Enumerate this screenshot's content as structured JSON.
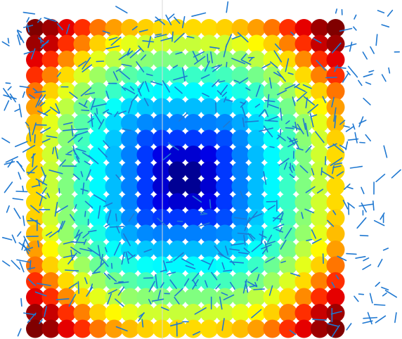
{
  "chart_data": {
    "type": "scatter",
    "title": "",
    "xlabel": "",
    "ylabel": "",
    "grid": false,
    "legend": "none",
    "colormap": "jet",
    "grid_size": 20,
    "marker": "filled-circle",
    "field_values": [
      [
        1.0,
        0.97,
        0.9,
        0.83,
        0.76,
        0.72,
        0.69,
        0.67,
        0.66,
        0.66,
        0.66,
        0.66,
        0.67,
        0.69,
        0.72,
        0.76,
        0.83,
        0.9,
        0.97,
        1.0
      ],
      [
        0.97,
        0.93,
        0.83,
        0.75,
        0.67,
        0.63,
        0.6,
        0.58,
        0.58,
        0.57,
        0.57,
        0.58,
        0.58,
        0.6,
        0.63,
        0.67,
        0.75,
        0.83,
        0.93,
        0.97
      ],
      [
        0.9,
        0.83,
        0.74,
        0.66,
        0.6,
        0.56,
        0.52,
        0.51,
        0.5,
        0.5,
        0.5,
        0.5,
        0.51,
        0.52,
        0.56,
        0.6,
        0.66,
        0.74,
        0.83,
        0.9
      ],
      [
        0.83,
        0.75,
        0.66,
        0.59,
        0.53,
        0.49,
        0.46,
        0.44,
        0.43,
        0.43,
        0.43,
        0.43,
        0.44,
        0.46,
        0.49,
        0.53,
        0.59,
        0.66,
        0.75,
        0.83
      ],
      [
        0.76,
        0.67,
        0.6,
        0.53,
        0.48,
        0.43,
        0.4,
        0.38,
        0.37,
        0.37,
        0.37,
        0.37,
        0.38,
        0.4,
        0.43,
        0.48,
        0.53,
        0.6,
        0.67,
        0.76
      ],
      [
        0.72,
        0.63,
        0.56,
        0.49,
        0.43,
        0.38,
        0.34,
        0.32,
        0.31,
        0.31,
        0.31,
        0.31,
        0.32,
        0.34,
        0.38,
        0.43,
        0.49,
        0.56,
        0.63,
        0.72
      ],
      [
        0.69,
        0.6,
        0.52,
        0.46,
        0.4,
        0.34,
        0.29,
        0.26,
        0.25,
        0.25,
        0.25,
        0.25,
        0.26,
        0.29,
        0.34,
        0.4,
        0.46,
        0.52,
        0.6,
        0.69
      ],
      [
        0.67,
        0.58,
        0.51,
        0.44,
        0.38,
        0.32,
        0.26,
        0.2,
        0.18,
        0.18,
        0.18,
        0.18,
        0.2,
        0.26,
        0.32,
        0.38,
        0.44,
        0.51,
        0.58,
        0.67
      ],
      [
        0.66,
        0.58,
        0.5,
        0.43,
        0.37,
        0.31,
        0.25,
        0.18,
        0.1,
        0.08,
        0.08,
        0.1,
        0.18,
        0.25,
        0.31,
        0.37,
        0.43,
        0.5,
        0.58,
        0.66
      ],
      [
        0.66,
        0.57,
        0.5,
        0.43,
        0.37,
        0.31,
        0.25,
        0.18,
        0.08,
        0.02,
        0.02,
        0.08,
        0.18,
        0.25,
        0.31,
        0.37,
        0.43,
        0.5,
        0.57,
        0.66
      ],
      [
        0.66,
        0.57,
        0.5,
        0.43,
        0.37,
        0.31,
        0.25,
        0.18,
        0.08,
        0.02,
        0.02,
        0.08,
        0.18,
        0.25,
        0.31,
        0.37,
        0.43,
        0.5,
        0.57,
        0.66
      ],
      [
        0.66,
        0.58,
        0.5,
        0.43,
        0.37,
        0.31,
        0.25,
        0.18,
        0.1,
        0.08,
        0.08,
        0.1,
        0.18,
        0.25,
        0.31,
        0.37,
        0.43,
        0.5,
        0.58,
        0.66
      ],
      [
        0.67,
        0.58,
        0.51,
        0.44,
        0.38,
        0.32,
        0.26,
        0.2,
        0.18,
        0.18,
        0.18,
        0.18,
        0.2,
        0.26,
        0.32,
        0.38,
        0.44,
        0.51,
        0.58,
        0.67
      ],
      [
        0.69,
        0.6,
        0.52,
        0.46,
        0.4,
        0.34,
        0.29,
        0.26,
        0.25,
        0.25,
        0.25,
        0.25,
        0.26,
        0.29,
        0.34,
        0.4,
        0.46,
        0.52,
        0.6,
        0.69
      ],
      [
        0.72,
        0.63,
        0.56,
        0.49,
        0.43,
        0.38,
        0.34,
        0.32,
        0.31,
        0.31,
        0.31,
        0.31,
        0.32,
        0.34,
        0.38,
        0.43,
        0.49,
        0.56,
        0.63,
        0.72
      ],
      [
        0.76,
        0.67,
        0.6,
        0.53,
        0.48,
        0.43,
        0.4,
        0.38,
        0.37,
        0.37,
        0.37,
        0.37,
        0.38,
        0.4,
        0.43,
        0.48,
        0.53,
        0.6,
        0.67,
        0.76
      ],
      [
        0.83,
        0.75,
        0.66,
        0.59,
        0.53,
        0.49,
        0.46,
        0.44,
        0.43,
        0.43,
        0.43,
        0.43,
        0.44,
        0.46,
        0.49,
        0.53,
        0.59,
        0.66,
        0.75,
        0.83
      ],
      [
        0.9,
        0.83,
        0.74,
        0.66,
        0.6,
        0.56,
        0.52,
        0.51,
        0.5,
        0.5,
        0.5,
        0.5,
        0.51,
        0.52,
        0.56,
        0.6,
        0.66,
        0.74,
        0.83,
        0.9
      ],
      [
        0.97,
        0.93,
        0.83,
        0.75,
        0.67,
        0.63,
        0.6,
        0.58,
        0.58,
        0.57,
        0.57,
        0.58,
        0.58,
        0.6,
        0.63,
        0.67,
        0.75,
        0.83,
        0.93,
        0.97
      ],
      [
        1.0,
        0.97,
        0.9,
        0.83,
        0.76,
        0.72,
        0.69,
        0.67,
        0.66,
        0.66,
        0.66,
        0.66,
        0.67,
        0.69,
        0.72,
        0.76,
        0.83,
        0.9,
        0.97,
        1.0
      ]
    ],
    "overlay": {
      "type": "segments",
      "color": "#1f78d1",
      "count": 600
    }
  },
  "colors": {
    "background": "#ffffff",
    "divider": "#d9d9d9",
    "segment": "#1f78d1"
  }
}
